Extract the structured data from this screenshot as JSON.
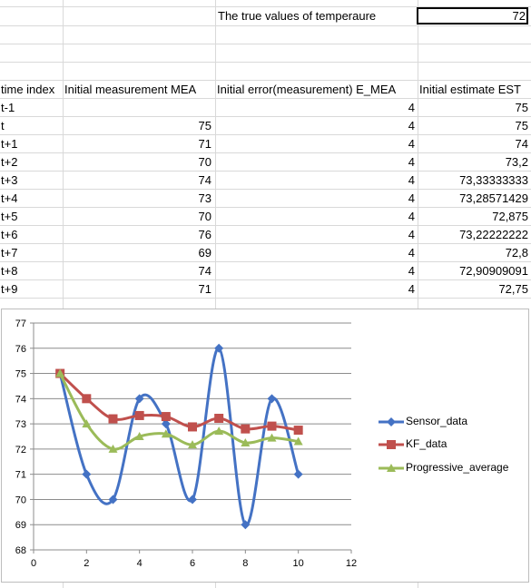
{
  "header": {
    "title_label": "The true values of temperaure",
    "true_value": "72"
  },
  "table": {
    "columns": [
      "time index",
      "Initial measurement MEA",
      "Initial error(measurement) E_MEA",
      "Initial estimate EST"
    ],
    "rows": [
      {
        "t": "t-1",
        "mea": "",
        "emea": "4",
        "est": "75"
      },
      {
        "t": "t",
        "mea": "75",
        "emea": "4",
        "est": "75"
      },
      {
        "t": "t+1",
        "mea": "71",
        "emea": "4",
        "est": "74"
      },
      {
        "t": "t+2",
        "mea": "70",
        "emea": "4",
        "est": "73,2"
      },
      {
        "t": "t+3",
        "mea": "74",
        "emea": "4",
        "est": "73,33333333"
      },
      {
        "t": "t+4",
        "mea": "73",
        "emea": "4",
        "est": "73,28571429"
      },
      {
        "t": "t+5",
        "mea": "70",
        "emea": "4",
        "est": "72,875"
      },
      {
        "t": "t+6",
        "mea": "76",
        "emea": "4",
        "est": "73,22222222"
      },
      {
        "t": "t+7",
        "mea": "69",
        "emea": "4",
        "est": "72,8"
      },
      {
        "t": "t+8",
        "mea": "74",
        "emea": "4",
        "est": "72,90909091"
      },
      {
        "t": "t+9",
        "mea": "71",
        "emea": "4",
        "est": "72,75"
      }
    ]
  },
  "chart_data": {
    "type": "scatter",
    "title": "",
    "xlabel": "",
    "ylabel": "",
    "xlim": [
      0,
      12
    ],
    "ylim": [
      68,
      77
    ],
    "xticks": [
      "0",
      "2",
      "4",
      "6",
      "8",
      "10",
      "12"
    ],
    "yticks": [
      "68",
      "69",
      "70",
      "71",
      "72",
      "73",
      "74",
      "75",
      "76",
      "77"
    ],
    "grid": true,
    "legend_position": "right",
    "series": [
      {
        "name": "Sensor_data",
        "color": "#4472c4",
        "marker": "diamond",
        "x": [
          1,
          2,
          3,
          4,
          5,
          6,
          7,
          8,
          9,
          10
        ],
        "y": [
          75,
          71,
          70,
          74,
          73,
          70,
          76,
          69,
          74,
          71
        ]
      },
      {
        "name": "KF_data",
        "color": "#c0504d",
        "marker": "square",
        "x": [
          1,
          2,
          3,
          4,
          5,
          6,
          7,
          8,
          9,
          10
        ],
        "y": [
          75,
          74,
          73.2,
          73.33,
          73.29,
          72.88,
          73.22,
          72.8,
          72.91,
          72.75
        ]
      },
      {
        "name": "Progressive_average",
        "color": "#9bbb59",
        "marker": "triangle",
        "x": [
          1,
          2,
          3,
          4,
          5,
          6,
          7,
          8,
          9,
          10
        ],
        "y": [
          75,
          73,
          72,
          72.5,
          72.6,
          72.17,
          72.71,
          72.25,
          72.44,
          72.3
        ]
      }
    ]
  }
}
